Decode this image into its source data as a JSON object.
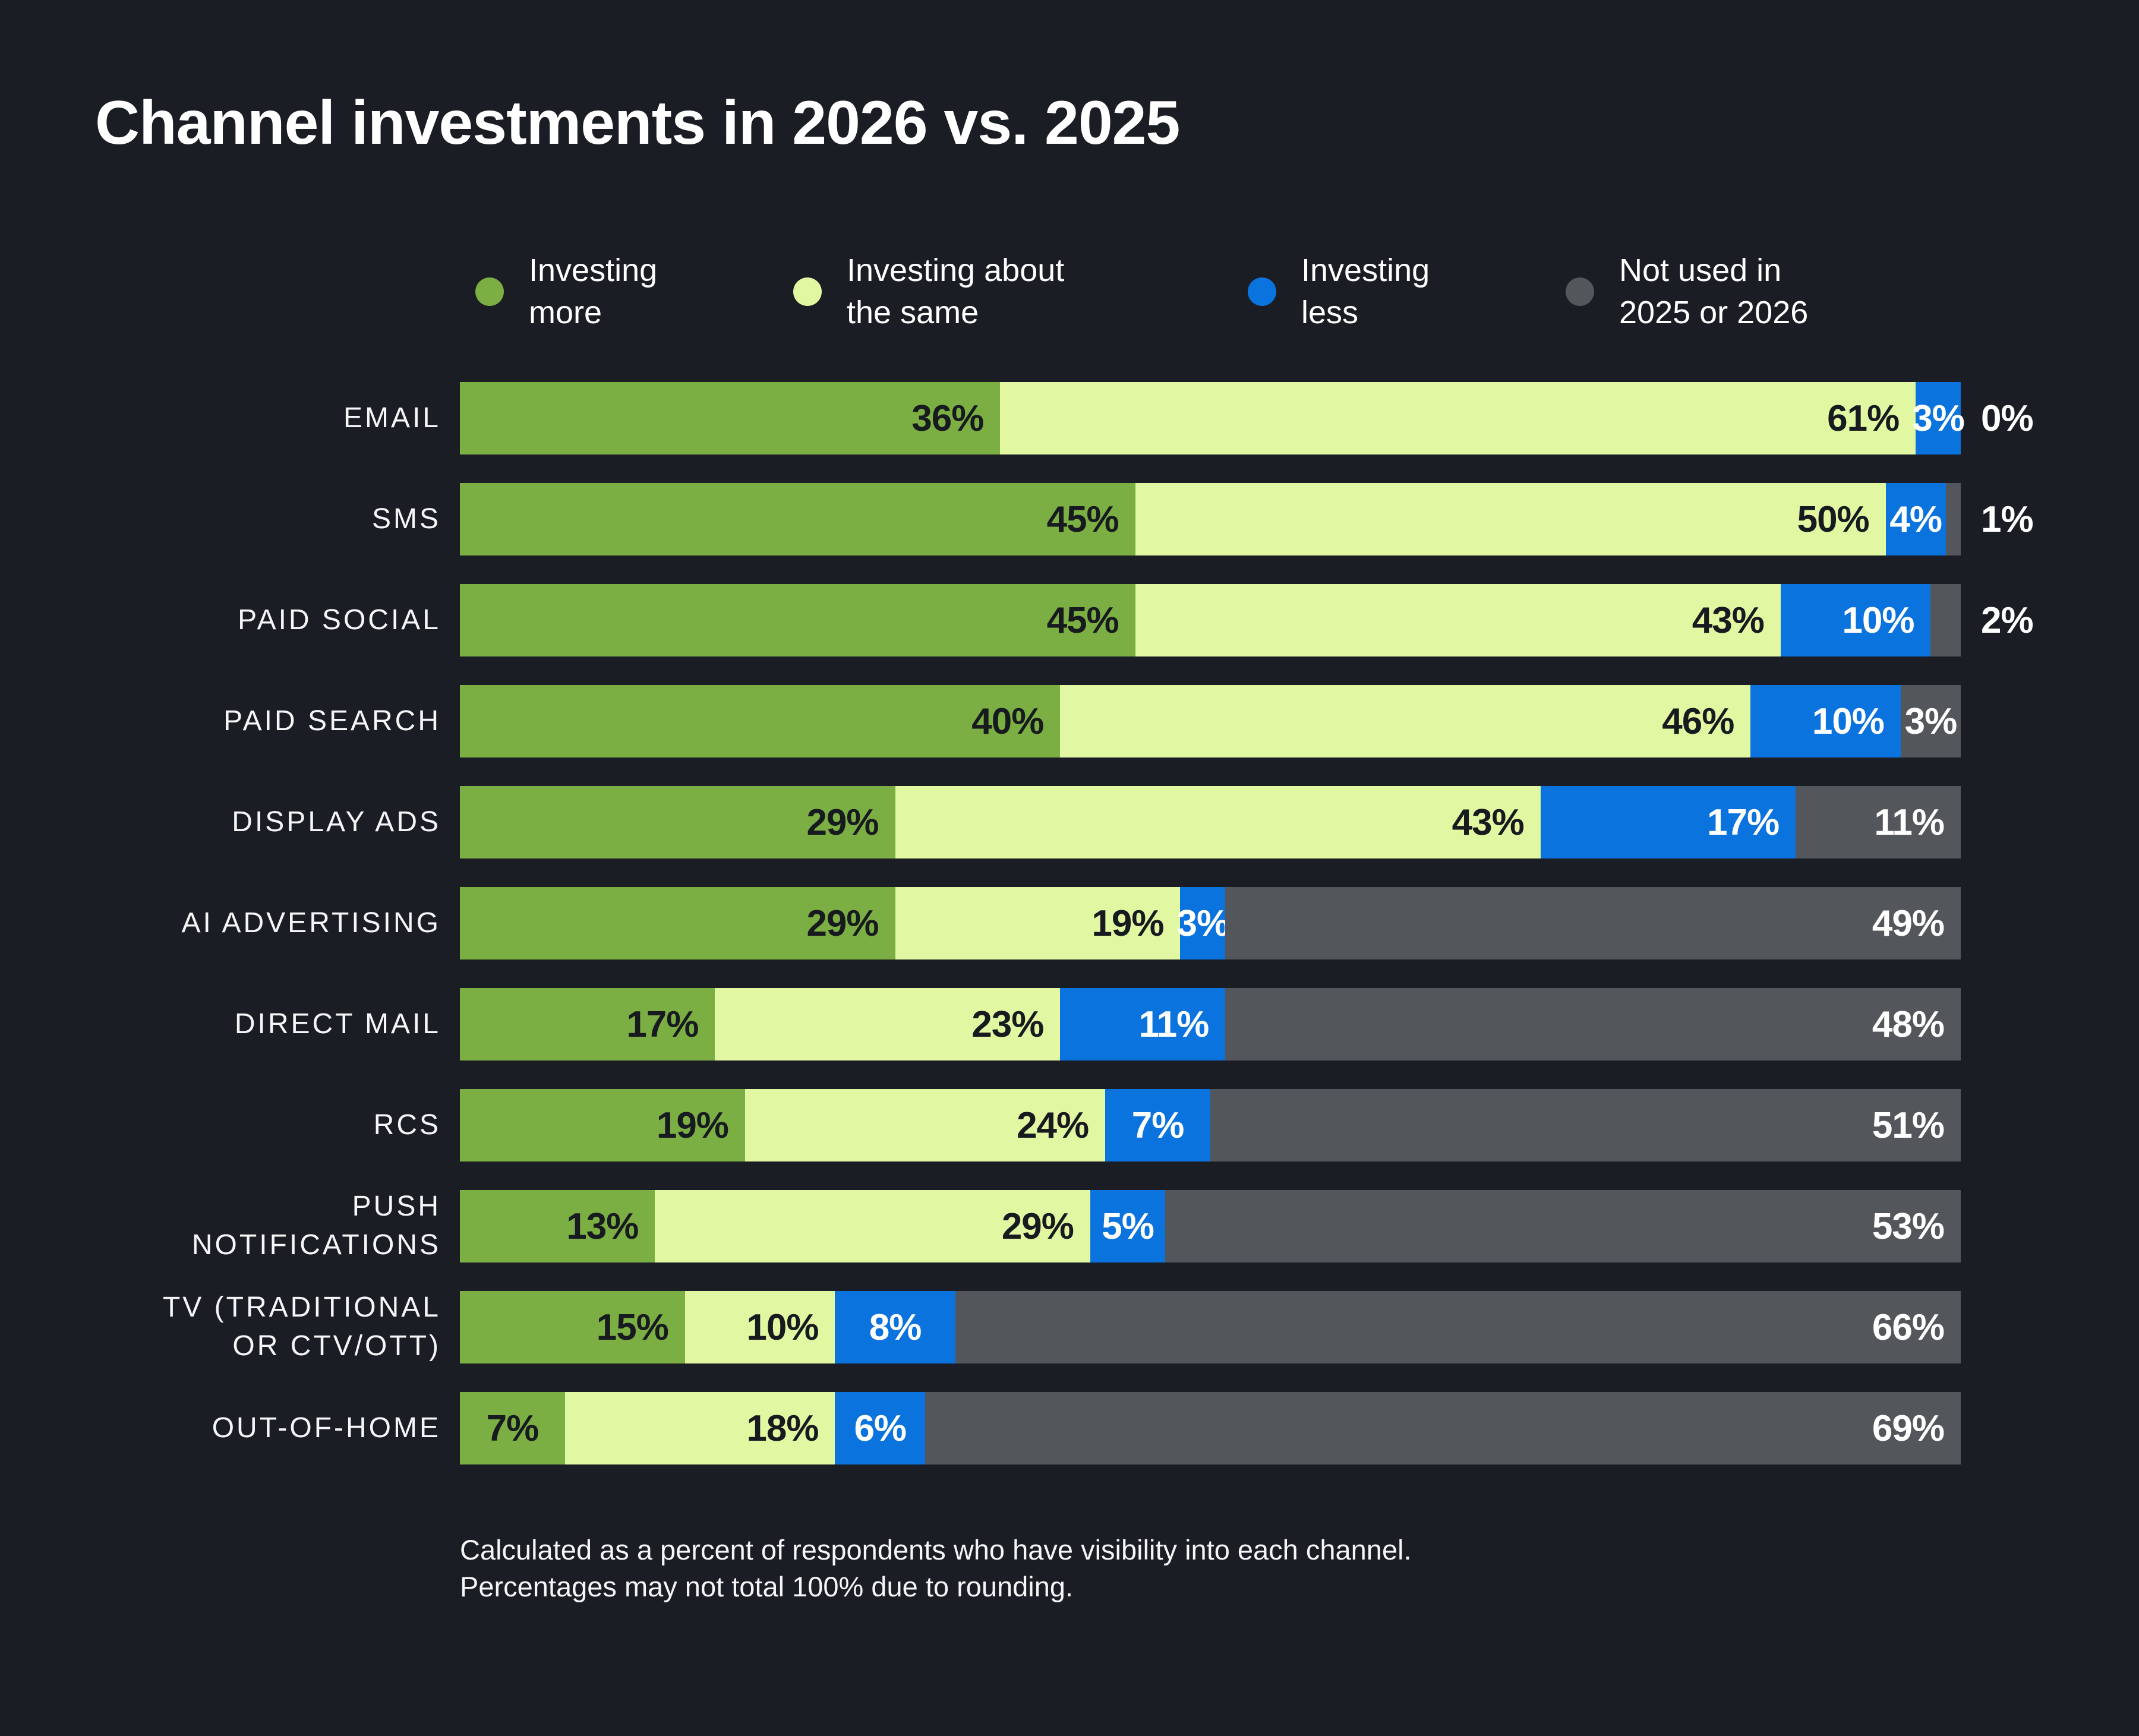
{
  "title": "Channel investments in 2026 vs. 2025",
  "colors": {
    "background": "#1A1D23",
    "investing_more": "#7CAF43",
    "investing_same": "#E2F7A2",
    "investing_less": "#0B73DD",
    "not_used": "#53565A",
    "text_light": "#FFFFFF",
    "text_dark": "#171A1F"
  },
  "legend": {
    "items": [
      {
        "label": "Investing\nmore",
        "color": "#7CAF43"
      },
      {
        "label": "Investing about\nthe same",
        "color": "#E2F7A2"
      },
      {
        "label": "Investing\nless",
        "color": "#0B73DD"
      },
      {
        "label": "Not used in\n2025 or 2026",
        "color": "#53565A"
      }
    ]
  },
  "footnote": {
    "line1": "Calculated as a percent of respondents who have visibility into each channel.",
    "line2": "Percentages may not total 100% due to rounding."
  },
  "chart_data": {
    "type": "bar",
    "orientation": "horizontal",
    "stacked": true,
    "title": "Channel investments in 2026 vs. 2025",
    "xlim": [
      0,
      100
    ],
    "value_suffix": "%",
    "legend_position": "top",
    "categories": [
      "EMAIL",
      "SMS",
      "PAID SOCIAL",
      "PAID SEARCH",
      "DISPLAY ADS",
      "AI ADVERTISING",
      "DIRECT MAIL",
      "RCS",
      "PUSH NOTIFICATIONS",
      "TV (TRADITIONAL OR CTV/OTT)",
      "OUT-OF-HOME"
    ],
    "category_display": [
      "EMAIL",
      "SMS",
      "PAID SOCIAL",
      "PAID SEARCH",
      "DISPLAY ADS",
      "AI ADVERTISING",
      "DIRECT MAIL",
      "RCS",
      "PUSH\nNOTIFICATIONS",
      "TV (TRADITIONAL\nOR CTV/OTT)",
      "OUT-OF-HOME"
    ],
    "series": [
      {
        "name": "Investing more",
        "color": "#7CAF43",
        "text": "#171A1F",
        "values": [
          36,
          45,
          45,
          40,
          29,
          29,
          17,
          19,
          13,
          15,
          7
        ]
      },
      {
        "name": "Investing about the same",
        "color": "#E2F7A2",
        "text": "#171A1F",
        "values": [
          61,
          50,
          43,
          46,
          43,
          19,
          23,
          24,
          29,
          10,
          18
        ]
      },
      {
        "name": "Investing less",
        "color": "#0B73DD",
        "text": "#FFFFFF",
        "values": [
          3,
          4,
          10,
          10,
          17,
          3,
          11,
          7,
          5,
          8,
          6
        ]
      },
      {
        "name": "Not used in 2025 or 2026",
        "color": "#53565A",
        "text": "#FFFFFF",
        "values": [
          0,
          1,
          2,
          3,
          11,
          49,
          48,
          51,
          53,
          66,
          69
        ]
      }
    ],
    "notes": "Final gray segment fills the bar to the right edge; 'not used' values below 3% are labeled outside the bar in white."
  }
}
